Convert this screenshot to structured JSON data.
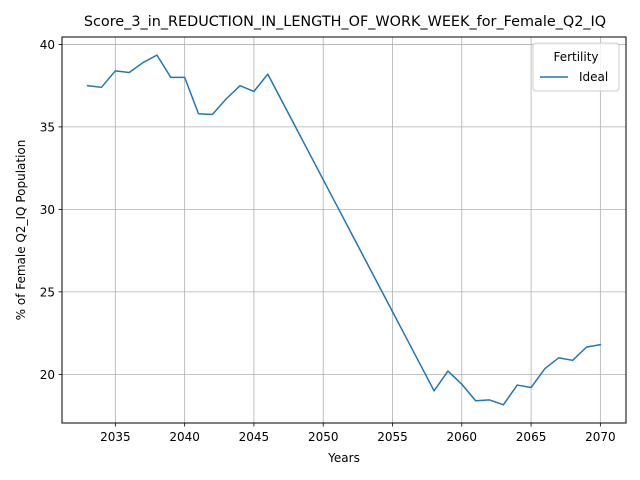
{
  "chart_data": {
    "type": "line",
    "title": "Score_3_in_REDUCTION_IN_LENGTH_OF_WORK_WEEK_for_Female_Q2_IQ",
    "xlabel": "Years",
    "ylabel": "% of Female Q2_IQ Population",
    "xlim": [
      2031.15,
      2071.85
    ],
    "ylim": [
      17.05,
      40.45
    ],
    "xticks": [
      2035,
      2040,
      2045,
      2050,
      2055,
      2060,
      2065,
      2070
    ],
    "yticks": [
      20,
      25,
      30,
      35,
      40
    ],
    "grid": true,
    "legend": {
      "title": "Fertility",
      "position": "top-right"
    },
    "series": [
      {
        "name": "Ideal",
        "color": "#1f77b4",
        "x": [
          2033,
          2034,
          2035,
          2036,
          2037,
          2038,
          2039,
          2040,
          2041,
          2042,
          2043,
          2044,
          2045,
          2046,
          2047,
          2048,
          2049,
          2050,
          2051,
          2052,
          2053,
          2054,
          2055,
          2056,
          2057,
          2058,
          2059,
          2060,
          2061,
          2062,
          2063,
          2064,
          2065,
          2066,
          2067,
          2068,
          2069,
          2070
        ],
        "values": [
          37.5,
          37.4,
          38.4,
          38.3,
          38.9,
          39.35,
          38.0,
          38.0,
          35.8,
          35.75,
          36.7,
          37.5,
          37.15,
          38.2,
          36.6,
          35.0,
          33.4,
          31.8,
          30.2,
          28.6,
          27.0,
          25.4,
          23.8,
          22.2,
          20.6,
          19.0,
          20.2,
          19.4,
          18.4,
          18.45,
          18.15,
          19.35,
          19.2,
          20.35,
          21.0,
          20.85,
          21.65,
          21.8
        ]
      }
    ]
  }
}
